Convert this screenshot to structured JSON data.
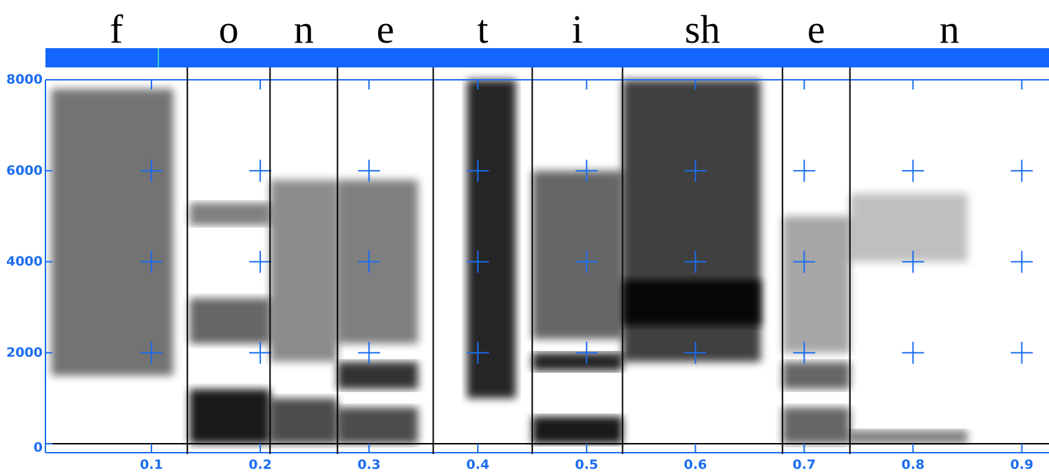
{
  "chart_data": {
    "type": "spectrogram",
    "xlim": [
      0,
      0.925
    ],
    "ylim": [
      0,
      8000
    ],
    "xticks": [
      0.1,
      0.2,
      0.3,
      0.4,
      0.5,
      0.6,
      0.7,
      0.8,
      0.9
    ],
    "yticks": [
      0,
      2000,
      4000,
      6000,
      8000
    ],
    "segments": [
      {
        "label": "f",
        "start": 0.0025,
        "end": 0.133
      },
      {
        "label": "o",
        "start": 0.133,
        "end": 0.209
      },
      {
        "label": "n",
        "start": 0.209,
        "end": 0.271
      },
      {
        "label": "e",
        "start": 0.271,
        "end": 0.359
      },
      {
        "label": "t",
        "start": 0.359,
        "end": 0.45
      },
      {
        "label": "i",
        "start": 0.45,
        "end": 0.533
      },
      {
        "label": "sh",
        "start": 0.533,
        "end": 0.68
      },
      {
        "label": "e",
        "start": 0.68,
        "end": 0.742
      },
      {
        "label": "n",
        "start": 0.742,
        "end": 0.925
      }
    ],
    "bands": [
      {
        "start": 0.008,
        "end": 0.12,
        "fmin": 1500,
        "fmax": 7800,
        "intensity": 0.55
      },
      {
        "start": 0.135,
        "end": 0.209,
        "fmin": 0,
        "fmax": 1200,
        "intensity": 0.9
      },
      {
        "start": 0.135,
        "end": 0.209,
        "fmin": 2200,
        "fmax": 3200,
        "intensity": 0.6
      },
      {
        "start": 0.135,
        "end": 0.209,
        "fmin": 4800,
        "fmax": 5300,
        "intensity": 0.5
      },
      {
        "start": 0.209,
        "end": 0.271,
        "fmin": 0,
        "fmax": 1000,
        "intensity": 0.7
      },
      {
        "start": 0.209,
        "end": 0.271,
        "fmin": 1800,
        "fmax": 5800,
        "intensity": 0.45
      },
      {
        "start": 0.271,
        "end": 0.345,
        "fmin": 0,
        "fmax": 800,
        "intensity": 0.7
      },
      {
        "start": 0.271,
        "end": 0.345,
        "fmin": 1200,
        "fmax": 1800,
        "intensity": 0.8
      },
      {
        "start": 0.271,
        "end": 0.345,
        "fmin": 2200,
        "fmax": 5800,
        "intensity": 0.5
      },
      {
        "start": 0.39,
        "end": 0.435,
        "fmin": 1000,
        "fmax": 8000,
        "intensity": 0.85
      },
      {
        "start": 0.45,
        "end": 0.533,
        "fmin": 0,
        "fmax": 600,
        "intensity": 0.9
      },
      {
        "start": 0.45,
        "end": 0.533,
        "fmin": 1600,
        "fmax": 2000,
        "intensity": 0.85
      },
      {
        "start": 0.45,
        "end": 0.533,
        "fmin": 2300,
        "fmax": 6000,
        "intensity": 0.6
      },
      {
        "start": 0.533,
        "end": 0.66,
        "fmin": 1800,
        "fmax": 8000,
        "intensity": 0.75
      },
      {
        "start": 0.533,
        "end": 0.66,
        "fmin": 2600,
        "fmax": 3600,
        "intensity": 0.9
      },
      {
        "start": 0.68,
        "end": 0.742,
        "fmin": 0,
        "fmax": 800,
        "intensity": 0.6
      },
      {
        "start": 0.68,
        "end": 0.742,
        "fmin": 1200,
        "fmax": 1800,
        "intensity": 0.6
      },
      {
        "start": 0.68,
        "end": 0.742,
        "fmin": 2000,
        "fmax": 5000,
        "intensity": 0.35
      },
      {
        "start": 0.742,
        "end": 0.85,
        "fmin": 0,
        "fmax": 300,
        "intensity": 0.5
      },
      {
        "start": 0.742,
        "end": 0.85,
        "fmin": 4000,
        "fmax": 5500,
        "intensity": 0.25
      }
    ]
  }
}
